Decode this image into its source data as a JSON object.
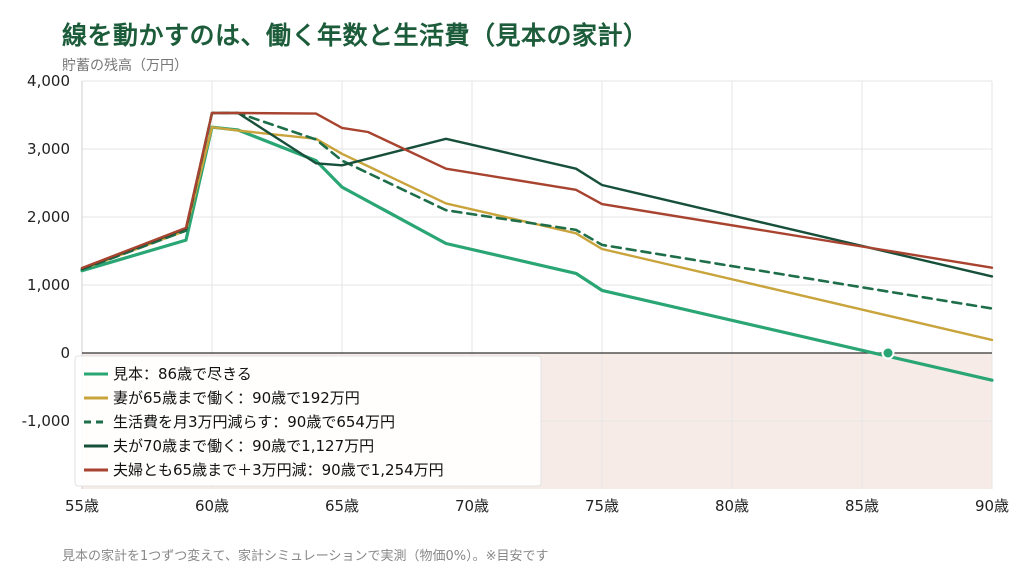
{
  "title": "線を動かすのは、働く年数と生活費（見本の家計）",
  "subtitle": "貯蓄の残高（万円）",
  "footnote": "見本の家計を1つずつ変えて、家計シミュレーションで実測（物価0%）。※目安です",
  "colors": {
    "negative_region": "#f6ebe6",
    "grid": "#e6e6e6",
    "zero_line": "#333333"
  },
  "chart_data": {
    "type": "line",
    "title": "線を動かすのは、働く年数と生活費（見本の家計）",
    "ylabel": "貯蓄の残高（万円）",
    "xlabel": "",
    "xlim": [
      55,
      90
    ],
    "ylim": [
      -2000,
      4000
    ],
    "y_ticks": [
      -1000,
      0,
      1000,
      2000,
      3000,
      4000
    ],
    "y_tick_labels": [
      "-1,000",
      "0",
      "1,000",
      "2,000",
      "3,000",
      "4,000"
    ],
    "x_ticks": [
      55,
      60,
      65,
      70,
      75,
      80,
      85,
      90
    ],
    "x_tick_labels": [
      "55歳",
      "60歳",
      "65歳",
      "70歳",
      "75歳",
      "80歳",
      "85歳",
      "90歳"
    ],
    "grid": true,
    "legend_position": "bottom-left",
    "marker": {
      "series": 0,
      "x": 86,
      "y": 0
    },
    "series": [
      {
        "name": "見本：86歳で尽きる",
        "color": "#2aa574",
        "dash": false,
        "width": 3.2,
        "x": [
          55,
          59,
          60,
          61,
          64,
          65,
          69,
          74,
          75,
          90
        ],
        "y": [
          1210,
          1660,
          3320,
          3280,
          2830,
          2440,
          1610,
          1170,
          920,
          -400
        ]
      },
      {
        "name": "妻が65歳まで働く：90歳で192万円",
        "color": "#c9a43c",
        "dash": false,
        "width": 2.4,
        "x": [
          55,
          59,
          60,
          61,
          64,
          65,
          69,
          74,
          75,
          90
        ],
        "y": [
          1230,
          1800,
          3320,
          3270,
          3150,
          2930,
          2200,
          1760,
          1530,
          192
        ]
      },
      {
        "name": "生活費を月3万円減らす：90歳で654万円",
        "color": "#1e6e4a",
        "dash": true,
        "width": 2.6,
        "x": [
          55,
          59,
          60,
          61,
          64,
          65,
          69,
          74,
          75,
          90
        ],
        "y": [
          1230,
          1800,
          3530,
          3530,
          3140,
          2830,
          2100,
          1810,
          1590,
          654
        ]
      },
      {
        "name": "夫が70歳まで働く：90歳で1,127万円",
        "color": "#17503a",
        "dash": false,
        "width": 2.4,
        "x": [
          55,
          59,
          60,
          61,
          64,
          65,
          69,
          74,
          75,
          90
        ],
        "y": [
          1240,
          1830,
          3530,
          3530,
          2790,
          2760,
          3150,
          2710,
          2470,
          1127
        ]
      },
      {
        "name": "夫婦とも65歳まで＋3万円減：90歳で1,254万円",
        "color": "#a8432f",
        "dash": false,
        "width": 2.4,
        "x": [
          55,
          59,
          60,
          61,
          64,
          65,
          66,
          69,
          74,
          75,
          90
        ],
        "y": [
          1250,
          1840,
          3530,
          3530,
          3520,
          3310,
          3250,
          2710,
          2400,
          2190,
          1254
        ]
      }
    ]
  }
}
